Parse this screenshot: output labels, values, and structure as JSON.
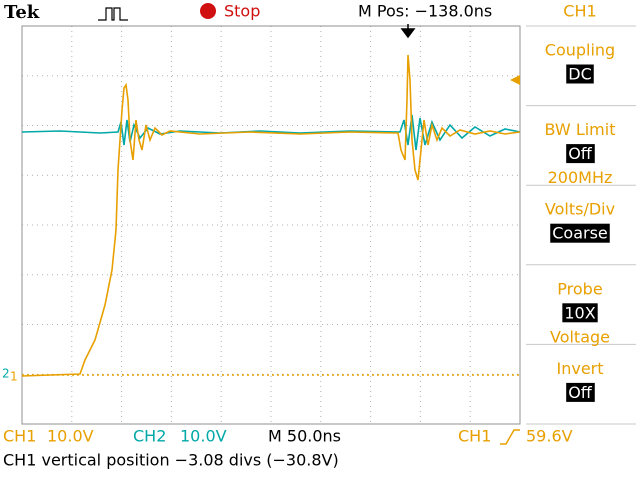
{
  "header": {
    "brand": "Tek",
    "status": "Stop",
    "position": "M Pos: −138.0ns"
  },
  "markers": {
    "ch2": "2",
    "ch1": "1"
  },
  "menu": {
    "title": "CH1",
    "items": [
      {
        "label": "Coupling",
        "value": "DC"
      },
      {
        "label": "BW Limit",
        "value": "Off",
        "note": "200MHz"
      },
      {
        "label": "Volts/Div",
        "value": "Coarse"
      },
      {
        "label": "Probe",
        "value": "10X",
        "note": "Voltage"
      },
      {
        "label": "Invert",
        "value": "Off"
      }
    ]
  },
  "footer": {
    "ch1": "CH1",
    "ch1_scale": "10.0V",
    "ch2": "CH2",
    "ch2_scale": "10.0V",
    "timebase": "M 50.0ns",
    "trigger_source": "CH1",
    "trigger_level": "59.6V",
    "message": "CH1 vertical position −3.08 divs (−30.8V)"
  }
}
